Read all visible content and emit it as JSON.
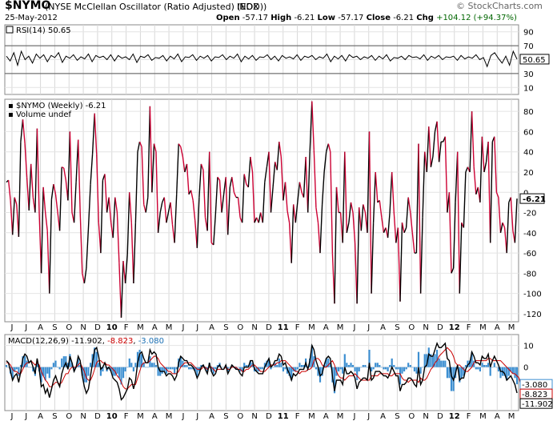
{
  "header": {
    "symbol": "$NYMO",
    "fullname": "(NYSE McClellan Oscillator (Ratio Adjusted) (EOD))",
    "exchange": "INDX",
    "date": "25-May-2012",
    "brand": "© StockCharts.com",
    "open_label": "Open",
    "open": "-57.17",
    "high_label": "High",
    "high": "-6.21",
    "low_label": "Low",
    "low": "-57.17",
    "close_label": "Close",
    "close": "-6.21",
    "chg_label": "Chg",
    "chg": "+104.12 (+94.37%)",
    "chg_color": "#006600"
  },
  "chart_data": [
    {
      "type": "line",
      "title": "RSI(14) 50.65",
      "legend": "RSI(14) 50.65",
      "last_value_label": "50.65",
      "yticks": [
        10,
        30,
        50,
        70,
        90
      ],
      "ylim": [
        0,
        100
      ],
      "reference_lines": [
        30,
        70
      ],
      "values": [
        55,
        48,
        60,
        42,
        62,
        50,
        55,
        45,
        58,
        52,
        57,
        47,
        56,
        53,
        60,
        46,
        55,
        52,
        57,
        49,
        54,
        51,
        58,
        47,
        56,
        53,
        55,
        50,
        57,
        48,
        56,
        52,
        54,
        50,
        58,
        46,
        55,
        53,
        57,
        49,
        53,
        52,
        56,
        48,
        55,
        51,
        58,
        47,
        54,
        53,
        57,
        49,
        55,
        52,
        56,
        48,
        54,
        53,
        57,
        50,
        55,
        52,
        58,
        47,
        55,
        51,
        56,
        49,
        54,
        53,
        57,
        50,
        55,
        48,
        56,
        52,
        54,
        51,
        57,
        49,
        55,
        53,
        56,
        50,
        54,
        52,
        58,
        47,
        55,
        51,
        56,
        48,
        57,
        53,
        55,
        50,
        54,
        52,
        56,
        49,
        55,
        51,
        57,
        48,
        53,
        52,
        55,
        50,
        56,
        53,
        54,
        51,
        57,
        49,
        55,
        52,
        56,
        50,
        54,
        53,
        55,
        49,
        56,
        51,
        54,
        52,
        57,
        50,
        53,
        40,
        56,
        60,
        52,
        45,
        55,
        42,
        62,
        50.65
      ]
    },
    {
      "type": "line",
      "title": "$NYMO (Weekly) -6.21",
      "legend": "$NYMO (Weekly) -6.21",
      "volume_legend": "Volume undef",
      "last_value_label": "-6.21",
      "up_color": "#000000",
      "down_color": "#cc0033",
      "yticks": [
        -120,
        -100,
        -80,
        -60,
        -40,
        -20,
        0,
        20,
        40,
        60,
        80
      ],
      "ylim": [
        -128,
        92
      ],
      "x_labels": [
        "J",
        "J",
        "A",
        "S",
        "O",
        "N",
        "D",
        "10",
        "F",
        "M",
        "A",
        "M",
        "J",
        "J",
        "A",
        "S",
        "O",
        "N",
        "D",
        "11",
        "F",
        "M",
        "A",
        "M",
        "J",
        "J",
        "A",
        "S",
        "O",
        "N",
        "D",
        "12",
        "F",
        "M",
        "A",
        "M"
      ],
      "values": [
        10,
        12,
        -8,
        -42,
        -5,
        -12,
        -44,
        50,
        72,
        48,
        15,
        -18,
        28,
        -5,
        -20,
        63,
        -20,
        -80,
        5,
        -20,
        -38,
        -100,
        -7,
        8,
        -2,
        -20,
        -38,
        25,
        24,
        12,
        -8,
        60,
        -20,
        -30,
        10,
        52,
        -20,
        -80,
        -90,
        -75,
        -35,
        8,
        38,
        78,
        38,
        -30,
        -60,
        12,
        18,
        -20,
        -5,
        -30,
        -45,
        -5,
        -20,
        -70,
        -124,
        -68,
        -90,
        -62,
        0,
        -30,
        -90,
        -30,
        40,
        50,
        45,
        -12,
        -20,
        -5,
        85,
        0,
        48,
        40,
        -40,
        -20,
        -10,
        -5,
        -30,
        -20,
        -10,
        -32,
        -50,
        -2,
        48,
        45,
        35,
        20,
        28,
        -2,
        2,
        -8,
        -28,
        -55,
        -5,
        28,
        22,
        -25,
        -38,
        40,
        -50,
        -52,
        -22,
        15,
        12,
        -20,
        -2,
        15,
        -42,
        5,
        15,
        0,
        -5,
        -5,
        -25,
        -30,
        18,
        8,
        5,
        35,
        20,
        -30,
        -25,
        -30,
        -20,
        -30,
        10,
        25,
        40,
        -20,
        5,
        30,
        22,
        50,
        35,
        -8,
        10,
        -18,
        -30,
        -70,
        -12,
        -30,
        -10,
        10,
        0,
        -5,
        35,
        -20,
        40,
        90,
        42,
        -15,
        -30,
        -60,
        -12,
        20,
        40,
        48,
        40,
        -60,
        -110,
        5,
        -20,
        -20,
        -50,
        40,
        -40,
        -30,
        -10,
        -20,
        -50,
        -110,
        -15,
        -38,
        -12,
        -20,
        -40,
        60,
        -100,
        -30,
        20,
        -10,
        -8,
        -25,
        -40,
        -35,
        -45,
        -20,
        20,
        -20,
        -50,
        -35,
        -108,
        -30,
        -40,
        -35,
        -5,
        -20,
        -40,
        -60,
        -60,
        48,
        -100,
        -25,
        40,
        20,
        65,
        25,
        35,
        60,
        70,
        30,
        50,
        50,
        55,
        -20,
        0,
        -80,
        -75,
        -10,
        40,
        -100,
        -30,
        -35,
        20,
        25,
        20,
        80,
        25,
        -2,
        5,
        -10,
        55,
        20,
        30,
        50,
        -50,
        50,
        55,
        0,
        -5,
        -40,
        -30,
        -35,
        -60,
        -10,
        -5,
        -38,
        -50,
        -6.21
      ]
    },
    {
      "type": "line",
      "title": "MACD(12,26,9) -11.902, -8.823, -3.080",
      "legend_parts": [
        "MACD(12,26,9) -11.902, ",
        "-8.823",
        ", ",
        "-3.080"
      ],
      "legend_colors": [
        "#000000",
        "#cc0000",
        "#000000",
        "#1a6fb4"
      ],
      "macd_label": "-11.902",
      "signal_label": "-8.823",
      "hist_label": "-3.080",
      "yticks": [
        0,
        10
      ],
      "ylim": [
        -20,
        15
      ],
      "series": [
        {
          "name": "MACD",
          "color": "#000000",
          "values": [
            3,
            2,
            -2,
            -6,
            -4,
            -3,
            -7,
            -2,
            4,
            6,
            5,
            2,
            3,
            0,
            -3,
            4,
            -1,
            -9,
            -8,
            -12,
            -10,
            -14,
            -10,
            -6,
            -4,
            -7,
            -9,
            -3,
            0,
            2,
            -1,
            5,
            2,
            -2,
            0,
            5,
            3,
            -4,
            -9,
            -12,
            -10,
            -4,
            2,
            8,
            9,
            5,
            -1,
            0,
            2,
            -1,
            0,
            -2,
            -5,
            -6,
            -7,
            -10,
            -15,
            -14,
            -12,
            -10,
            -5,
            -6,
            -10,
            -6,
            2,
            6,
            7,
            4,
            2,
            2,
            8,
            6,
            7,
            6,
            0,
            -2,
            -2,
            -2,
            -4,
            -3,
            -3,
            -4,
            -6,
            -4,
            2,
            5,
            4,
            3,
            3,
            1,
            1,
            0,
            -2,
            -5,
            -3,
            0,
            1,
            -1,
            -3,
            2,
            -2,
            -4,
            -3,
            0,
            1,
            -1,
            -1,
            1,
            -3,
            -1,
            1,
            0,
            -1,
            -1,
            -3,
            -4,
            0,
            0,
            0,
            3,
            3,
            -1,
            -2,
            -3,
            -3,
            -3,
            0,
            2,
            4,
            0,
            1,
            3,
            3,
            6,
            5,
            1,
            2,
            -1,
            -3,
            -6,
            -3,
            -4,
            -3,
            -1,
            -1,
            -1,
            2,
            -1,
            3,
            10,
            8,
            3,
            0,
            -4,
            -3,
            1,
            4,
            5,
            4,
            -4,
            -11,
            -6,
            -6,
            -6,
            -8,
            0,
            -3,
            -3,
            -2,
            -3,
            -5,
            -10,
            -7,
            -6,
            -5,
            -5,
            -6,
            2,
            -6,
            -5,
            -2,
            -2,
            -2,
            -3,
            -4,
            -4,
            -5,
            -3,
            0,
            -2,
            -4,
            -4,
            -11,
            -8,
            -8,
            -7,
            -5,
            -5,
            -6,
            -8,
            -9,
            0,
            -8,
            -6,
            0,
            1,
            6,
            5,
            5,
            8,
            11,
            9,
            9,
            10,
            11,
            4,
            3,
            -4,
            -6,
            -3,
            1,
            -6,
            -5,
            -5,
            -1,
            1,
            2,
            7,
            5,
            2,
            2,
            1,
            5,
            4,
            4,
            6,
            0,
            3,
            5,
            3,
            1,
            -2,
            -2,
            -3,
            -6,
            -5,
            -4,
            -6,
            -8,
            -11.902
          ]
        },
        {
          "name": "Signal",
          "color": "#cc0000",
          "values": [
            2,
            2,
            1,
            -1,
            -2,
            -2,
            -3,
            -3,
            -1,
            1,
            2,
            2,
            3,
            2,
            1,
            2,
            1,
            -2,
            -4,
            -6,
            -7,
            -9,
            -9,
            -8,
            -7,
            -7,
            -8,
            -7,
            -5,
            -3,
            -3,
            -1,
            0,
            0,
            0,
            1,
            2,
            0,
            -2,
            -5,
            -6,
            -6,
            -4,
            -1,
            2,
            3,
            3,
            2,
            2,
            1,
            1,
            0,
            -1,
            -2,
            -4,
            -5,
            -7,
            -9,
            -10,
            -10,
            -9,
            -8,
            -8,
            -8,
            -5,
            -2,
            1,
            2,
            2,
            2,
            3,
            4,
            5,
            5,
            4,
            2,
            1,
            0,
            -1,
            -2,
            -2,
            -3,
            -3,
            -3,
            -2,
            0,
            1,
            2,
            2,
            2,
            2,
            1,
            0,
            -1,
            -1,
            -1,
            0,
            0,
            -1,
            0,
            0,
            -1,
            -2,
            -1,
            -1,
            -1,
            -1,
            0,
            -1,
            -1,
            0,
            0,
            0,
            -1,
            -1,
            -2,
            -2,
            -1,
            -1,
            0,
            1,
            1,
            0,
            -1,
            -2,
            -2,
            -2,
            -1,
            0,
            1,
            1,
            1,
            2,
            2,
            3,
            3,
            3,
            2,
            1,
            0,
            -1,
            -2,
            -2,
            -3,
            -2,
            -2,
            -2,
            -1,
            -1,
            0,
            3,
            4,
            4,
            3,
            1,
            0,
            0,
            1,
            2,
            3,
            1,
            -2,
            -4,
            -5,
            -5,
            -6,
            -5,
            -4,
            -4,
            -4,
            -3,
            -4,
            -5,
            -6,
            -6,
            -6,
            -6,
            -6,
            -4,
            -4,
            -4,
            -4,
            -3,
            -3,
            -3,
            -3,
            -3,
            -4,
            -4,
            -3,
            -3,
            -3,
            -3,
            -5,
            -6,
            -6,
            -7,
            -6,
            -6,
            -6,
            -6,
            -7,
            -5,
            -6,
            -6,
            -5,
            -3,
            -1,
            0,
            2,
            3,
            5,
            6,
            7,
            8,
            9,
            8,
            7,
            5,
            2,
            1,
            1,
            0,
            -1,
            -2,
            -2,
            -1,
            0,
            2,
            3,
            3,
            3,
            3,
            3,
            3,
            4,
            4,
            3,
            3,
            3,
            3,
            3,
            2,
            1,
            0,
            -1,
            -2,
            -3,
            -3,
            -4,
            -5,
            -8.823
          ]
        }
      ],
      "histogram": {
        "color": "#3d8fd1",
        "name": "Histogram"
      }
    }
  ],
  "x_axis": {
    "labels": [
      "J",
      "J",
      "A",
      "S",
      "O",
      "N",
      "D",
      "10",
      "F",
      "M",
      "A",
      "M",
      "J",
      "J",
      "A",
      "S",
      "O",
      "N",
      "D",
      "11",
      "F",
      "M",
      "A",
      "M",
      "J",
      "J",
      "A",
      "S",
      "O",
      "N",
      "D",
      "12",
      "F",
      "M",
      "A",
      "M"
    ],
    "bold": [
      "10",
      "11",
      "12"
    ]
  }
}
